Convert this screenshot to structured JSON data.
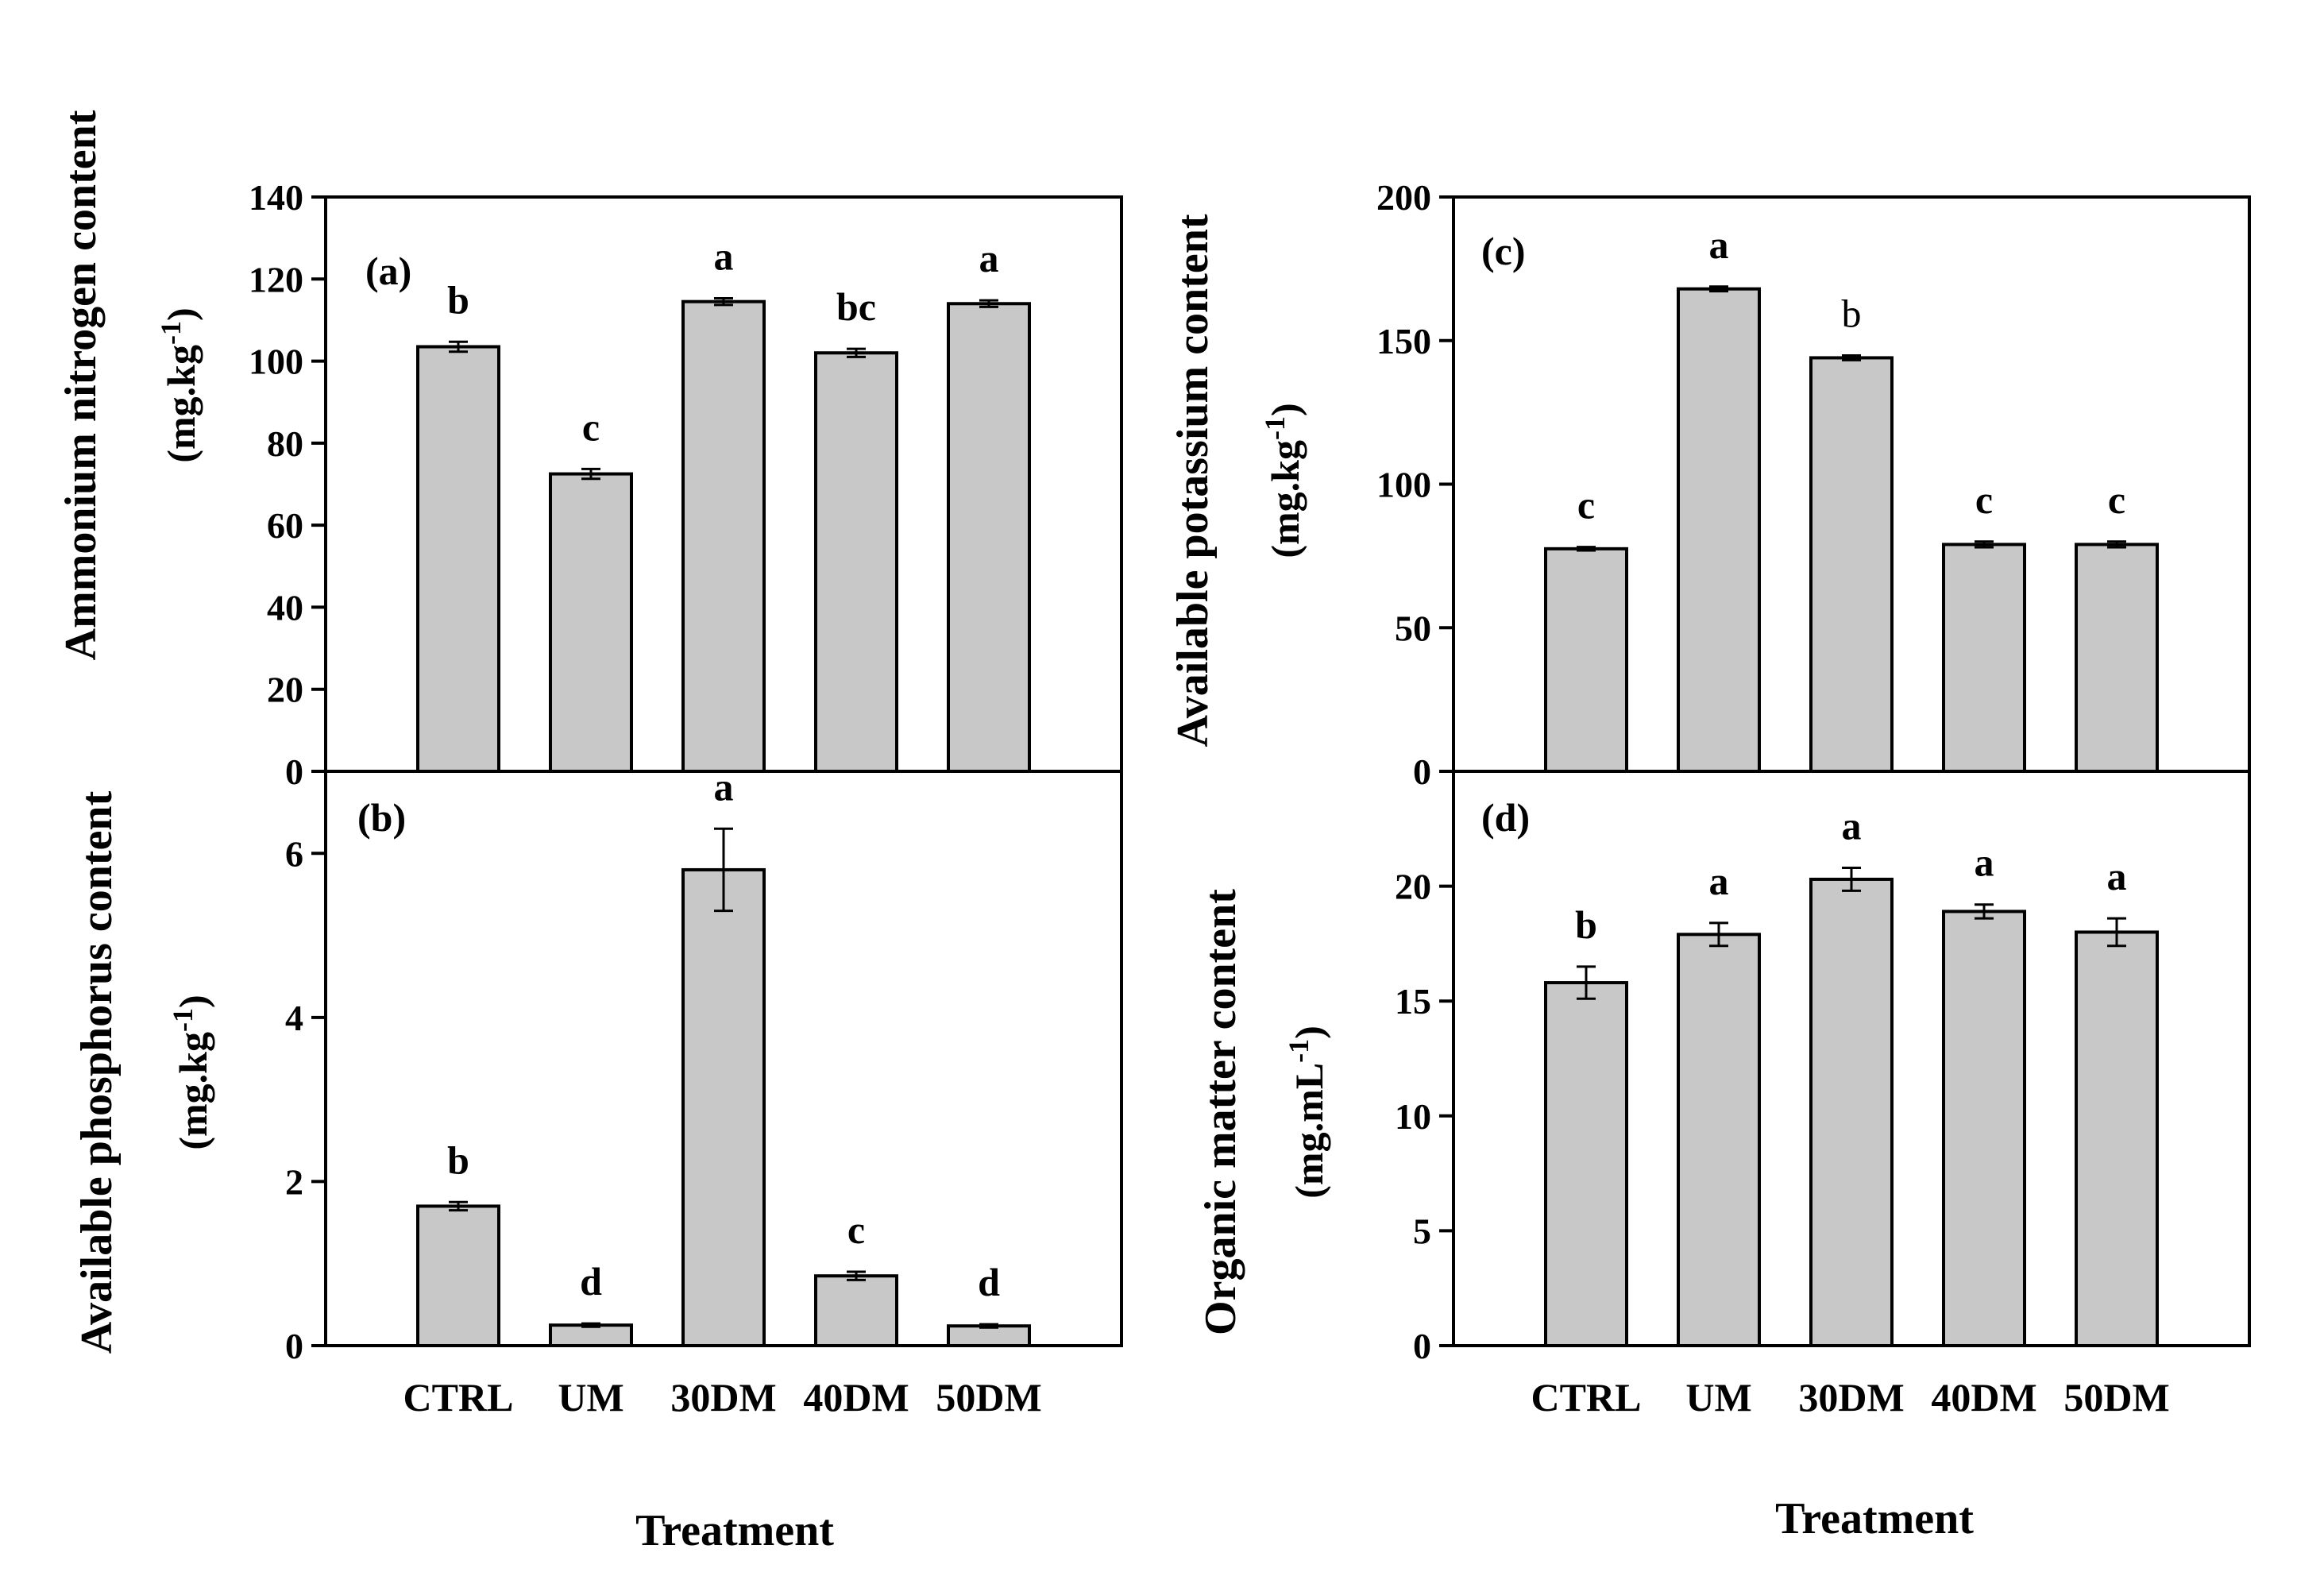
{
  "chart_data": [
    {
      "id": "a",
      "type": "bar",
      "panel_label": "(a)",
      "ylabel": "Ammonium nitrogen content",
      "yunit": {
        "base": "(mg.kg",
        "sup": "-1",
        "end": ")"
      },
      "ylim": [
        0,
        140
      ],
      "yticks": [
        0,
        20,
        40,
        60,
        80,
        100,
        120,
        140
      ],
      "categories": [
        "CTRL",
        "UM",
        "30DM",
        "40DM",
        "50DM"
      ],
      "values": [
        103.5,
        72.5,
        114.5,
        102,
        114
      ],
      "errors": [
        1.2,
        1.2,
        0.8,
        1.0,
        0.8
      ],
      "letters": [
        "b",
        "c",
        "a",
        "bc",
        "a"
      ],
      "show_xticklabels": false
    },
    {
      "id": "b",
      "type": "bar",
      "panel_label": "(b)",
      "ylabel": "Available phosphorus content",
      "yunit": {
        "base": "(mg.kg",
        "sup": "-1",
        "end": ")"
      },
      "ylim": [
        0,
        7
      ],
      "yticks": [
        0,
        2,
        4,
        6
      ],
      "categories": [
        "CTRL",
        "UM",
        "30DM",
        "40DM",
        "50DM"
      ],
      "values": [
        1.7,
        0.25,
        5.8,
        0.85,
        0.24
      ],
      "errors": [
        0.05,
        0.02,
        0.5,
        0.05,
        0.02
      ],
      "letters": [
        "b",
        "d",
        "a",
        "c",
        "d"
      ],
      "show_xticklabels": true
    },
    {
      "id": "c",
      "type": "bar",
      "panel_label": "(c)",
      "ylabel": "Available potassium content",
      "yunit": {
        "base": "(mg.kg",
        "sup": "-1",
        "end": ")"
      },
      "ylim": [
        0,
        200
      ],
      "yticks": [
        0,
        50,
        100,
        150,
        200
      ],
      "categories": [
        "CTRL",
        "UM",
        "30DM",
        "40DM",
        "50DM"
      ],
      "values": [
        77.5,
        168,
        144,
        79,
        79
      ],
      "errors": [
        0.6,
        0.8,
        0.8,
        1.0,
        1.0
      ],
      "letters": [
        "c",
        "a",
        "b",
        "c",
        "c"
      ],
      "plain_letters": [
        2
      ],
      "show_xticklabels": false
    },
    {
      "id": "d",
      "type": "bar",
      "panel_label": "(d)",
      "ylabel": "Organic matter content",
      "yunit": {
        "base": "(mg.mL",
        "sup": "-1",
        "end": ")"
      },
      "ylim": [
        0,
        25
      ],
      "yticks": [
        0,
        5,
        10,
        15,
        20
      ],
      "categories": [
        "CTRL",
        "UM",
        "30DM",
        "40DM",
        "50DM"
      ],
      "values": [
        15.8,
        17.9,
        20.3,
        18.9,
        18.0
      ],
      "errors": [
        0.7,
        0.5,
        0.5,
        0.3,
        0.6
      ],
      "letters": [
        "b",
        "a",
        "a",
        "a",
        "a"
      ],
      "show_xticklabels": true
    }
  ],
  "xlabels": {
    "left": "Treatment",
    "right": "Treatment"
  },
  "colors": {
    "bar_fill": "#c8c8c8",
    "stroke": "#000000",
    "background": "#ffffff"
  }
}
